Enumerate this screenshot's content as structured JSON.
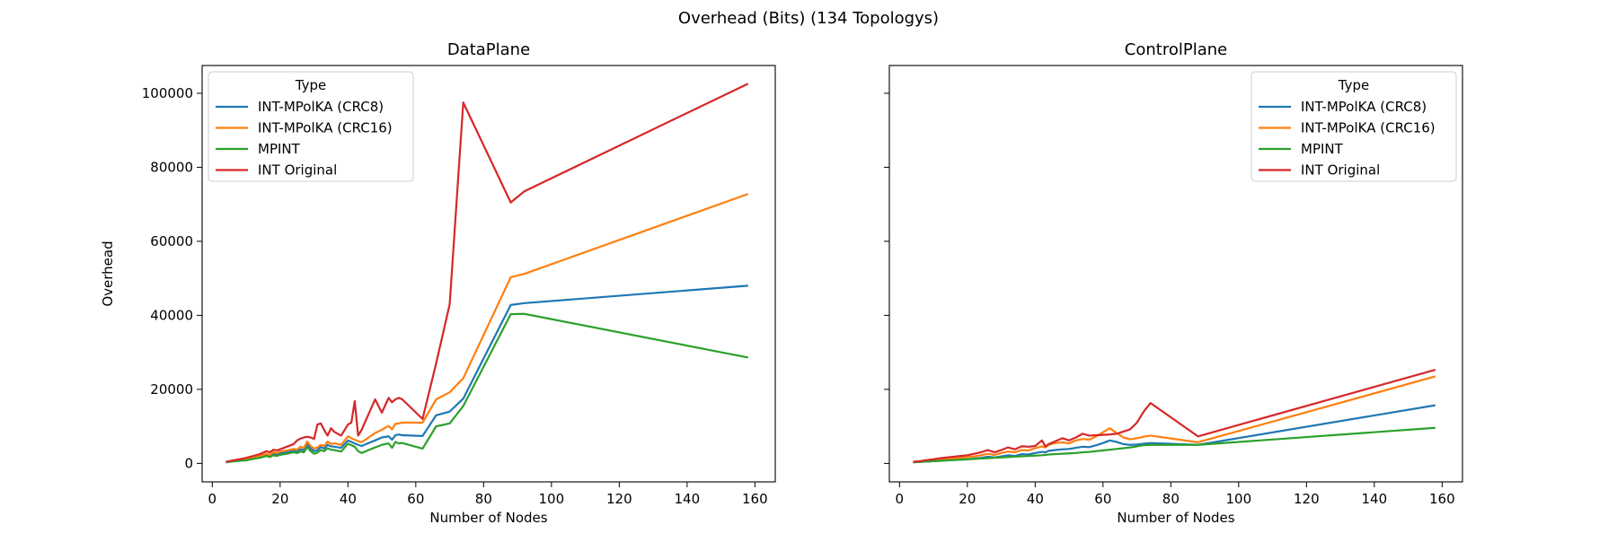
{
  "figure": {
    "title": "Overhead (Bits) (134 Topologys)"
  },
  "chart_data": [
    {
      "type": "line",
      "title": "DataPlane",
      "xlabel": "Number of Nodes",
      "ylabel": "Overhead",
      "xlim": [
        -3,
        166
      ],
      "ylim": [
        -5000,
        107500
      ],
      "xticks": [
        0,
        20,
        40,
        60,
        80,
        100,
        120,
        140,
        160
      ],
      "yticks": [
        0,
        20000,
        40000,
        60000,
        80000,
        100000
      ],
      "grid": false,
      "legend": {
        "title": "Type",
        "placement": "top-left"
      },
      "x": [
        4,
        6,
        8,
        10,
        12,
        14,
        16,
        17,
        18,
        19,
        20,
        22,
        24,
        25,
        26,
        27,
        28,
        29,
        30,
        31,
        32,
        33,
        34,
        35,
        36,
        38,
        40,
        41,
        42,
        43,
        44,
        48,
        50,
        52,
        53,
        54,
        55,
        56,
        62,
        66,
        70,
        74,
        88,
        92,
        158
      ],
      "series": [
        {
          "name": "INT-MPolKA (CRC8)",
          "color": "#1f77b4",
          "values": [
            300,
            600,
            800,
            1000,
            1400,
            1700,
            2300,
            2000,
            2600,
            2400,
            2800,
            3000,
            3400,
            3200,
            3800,
            3600,
            5200,
            4000,
            3300,
            3600,
            4400,
            4000,
            5000,
            4600,
            4500,
            4200,
            6200,
            5800,
            5400,
            5000,
            4700,
            6200,
            7000,
            7300,
            6400,
            7600,
            7800,
            7600,
            7400,
            13000,
            14000,
            17500,
            42800,
            43300,
            48000
          ]
        },
        {
          "name": "INT-MPolKA (CRC16)",
          "color": "#ff7f0e",
          "values": [
            400,
            700,
            1000,
            1300,
            1600,
            2000,
            2600,
            2300,
            3000,
            2800,
            3200,
            3500,
            3900,
            3700,
            4500,
            4200,
            5900,
            4700,
            4000,
            4300,
            5000,
            4700,
            5900,
            5300,
            5400,
            5000,
            7300,
            6800,
            6400,
            6000,
            5700,
            8200,
            9100,
            10100,
            9200,
            10700,
            10800,
            11000,
            11000,
            17300,
            19200,
            23000,
            50300,
            51200,
            72800
          ]
        },
        {
          "name": "MPINT",
          "color": "#2ca02c",
          "values": [
            300,
            500,
            700,
            800,
            1200,
            1500,
            2000,
            1700,
            2200,
            2000,
            2300,
            2600,
            3000,
            2800,
            3200,
            3000,
            4400,
            3300,
            2600,
            2900,
            3600,
            3300,
            4100,
            3700,
            3600,
            3200,
            5300,
            4900,
            4500,
            3300,
            2800,
            4300,
            5000,
            5400,
            4200,
            5800,
            5400,
            5500,
            4000,
            10000,
            10800,
            15500,
            40300,
            40400,
            28600
          ]
        },
        {
          "name": "INT Original",
          "color": "#d62728",
          "values": [
            400,
            800,
            1100,
            1500,
            2000,
            2500,
            3300,
            3000,
            3700,
            3500,
            3800,
            4500,
            5200,
            6200,
            6700,
            7000,
            7200,
            7000,
            6600,
            10500,
            10800,
            9000,
            7500,
            9500,
            8500,
            7500,
            10500,
            11000,
            16800,
            7500,
            9000,
            17300,
            13700,
            17700,
            16500,
            17300,
            17700,
            17300,
            12000,
            27000,
            43000,
            97500,
            70500,
            73500,
            102600
          ]
        }
      ]
    },
    {
      "type": "line",
      "title": "ControlPlane",
      "xlabel": "Number of Nodes",
      "ylabel": "",
      "xlim": [
        -3,
        166
      ],
      "ylim": [
        -5000,
        107500
      ],
      "xticks": [
        0,
        20,
        40,
        60,
        80,
        100,
        120,
        140,
        160
      ],
      "yticks": [
        0,
        20000,
        40000,
        60000,
        80000,
        100000
      ],
      "grid": false,
      "legend": {
        "title": "Type",
        "placement": "top-right"
      },
      "x": [
        4,
        6,
        8,
        10,
        12,
        14,
        16,
        18,
        20,
        22,
        24,
        26,
        28,
        30,
        32,
        34,
        36,
        38,
        40,
        42,
        43,
        44,
        46,
        48,
        50,
        52,
        54,
        56,
        58,
        60,
        62,
        64,
        66,
        68,
        70,
        72,
        74,
        88,
        158
      ],
      "series": [
        {
          "name": "INT-MPolKA (CRC8)",
          "color": "#1f77b4",
          "values": [
            300,
            400,
            500,
            600,
            700,
            800,
            900,
            1000,
            1100,
            1300,
            1500,
            1800,
            1600,
            1900,
            2200,
            2000,
            2500,
            2400,
            2800,
            3100,
            3000,
            3400,
            3600,
            3800,
            3900,
            4200,
            4500,
            4400,
            4900,
            5500,
            6200,
            5800,
            5200,
            5000,
            5100,
            5300,
            5500,
            5000,
            15700
          ]
        },
        {
          "name": "INT-MPolKA (CRC16)",
          "color": "#ff7f0e",
          "values": [
            400,
            500,
            700,
            900,
            1000,
            1200,
            1300,
            1500,
            1700,
            1900,
            2200,
            2600,
            2300,
            2800,
            3200,
            3000,
            3600,
            3500,
            4100,
            4600,
            4300,
            5000,
            5500,
            5700,
            5400,
            6200,
            6600,
            6400,
            7300,
            8400,
            9500,
            8200,
            7000,
            6500,
            6800,
            7200,
            7500,
            5700,
            23500
          ]
        },
        {
          "name": "MPINT",
          "color": "#2ca02c",
          "values": [
            300,
            400,
            500,
            600,
            700,
            800,
            900,
            1000,
            1100,
            1200,
            1300,
            1400,
            1500,
            1600,
            1700,
            1800,
            1900,
            2000,
            2100,
            2200,
            2300,
            2400,
            2500,
            2600,
            2700,
            2800,
            3000,
            3100,
            3300,
            3500,
            3700,
            3900,
            4100,
            4300,
            4600,
            4900,
            5000,
            5000,
            9600
          ]
        },
        {
          "name": "INT Original",
          "color": "#d62728",
          "values": [
            400,
            600,
            900,
            1100,
            1400,
            1600,
            1800,
            2000,
            2200,
            2600,
            3000,
            3600,
            3000,
            3600,
            4300,
            3800,
            4600,
            4500,
            4700,
            6200,
            4600,
            5200,
            6000,
            6800,
            6200,
            7000,
            8000,
            7500,
            7600,
            7700,
            7800,
            8000,
            8600,
            9200,
            11000,
            14000,
            16300,
            7300,
            25300
          ]
        }
      ]
    }
  ]
}
